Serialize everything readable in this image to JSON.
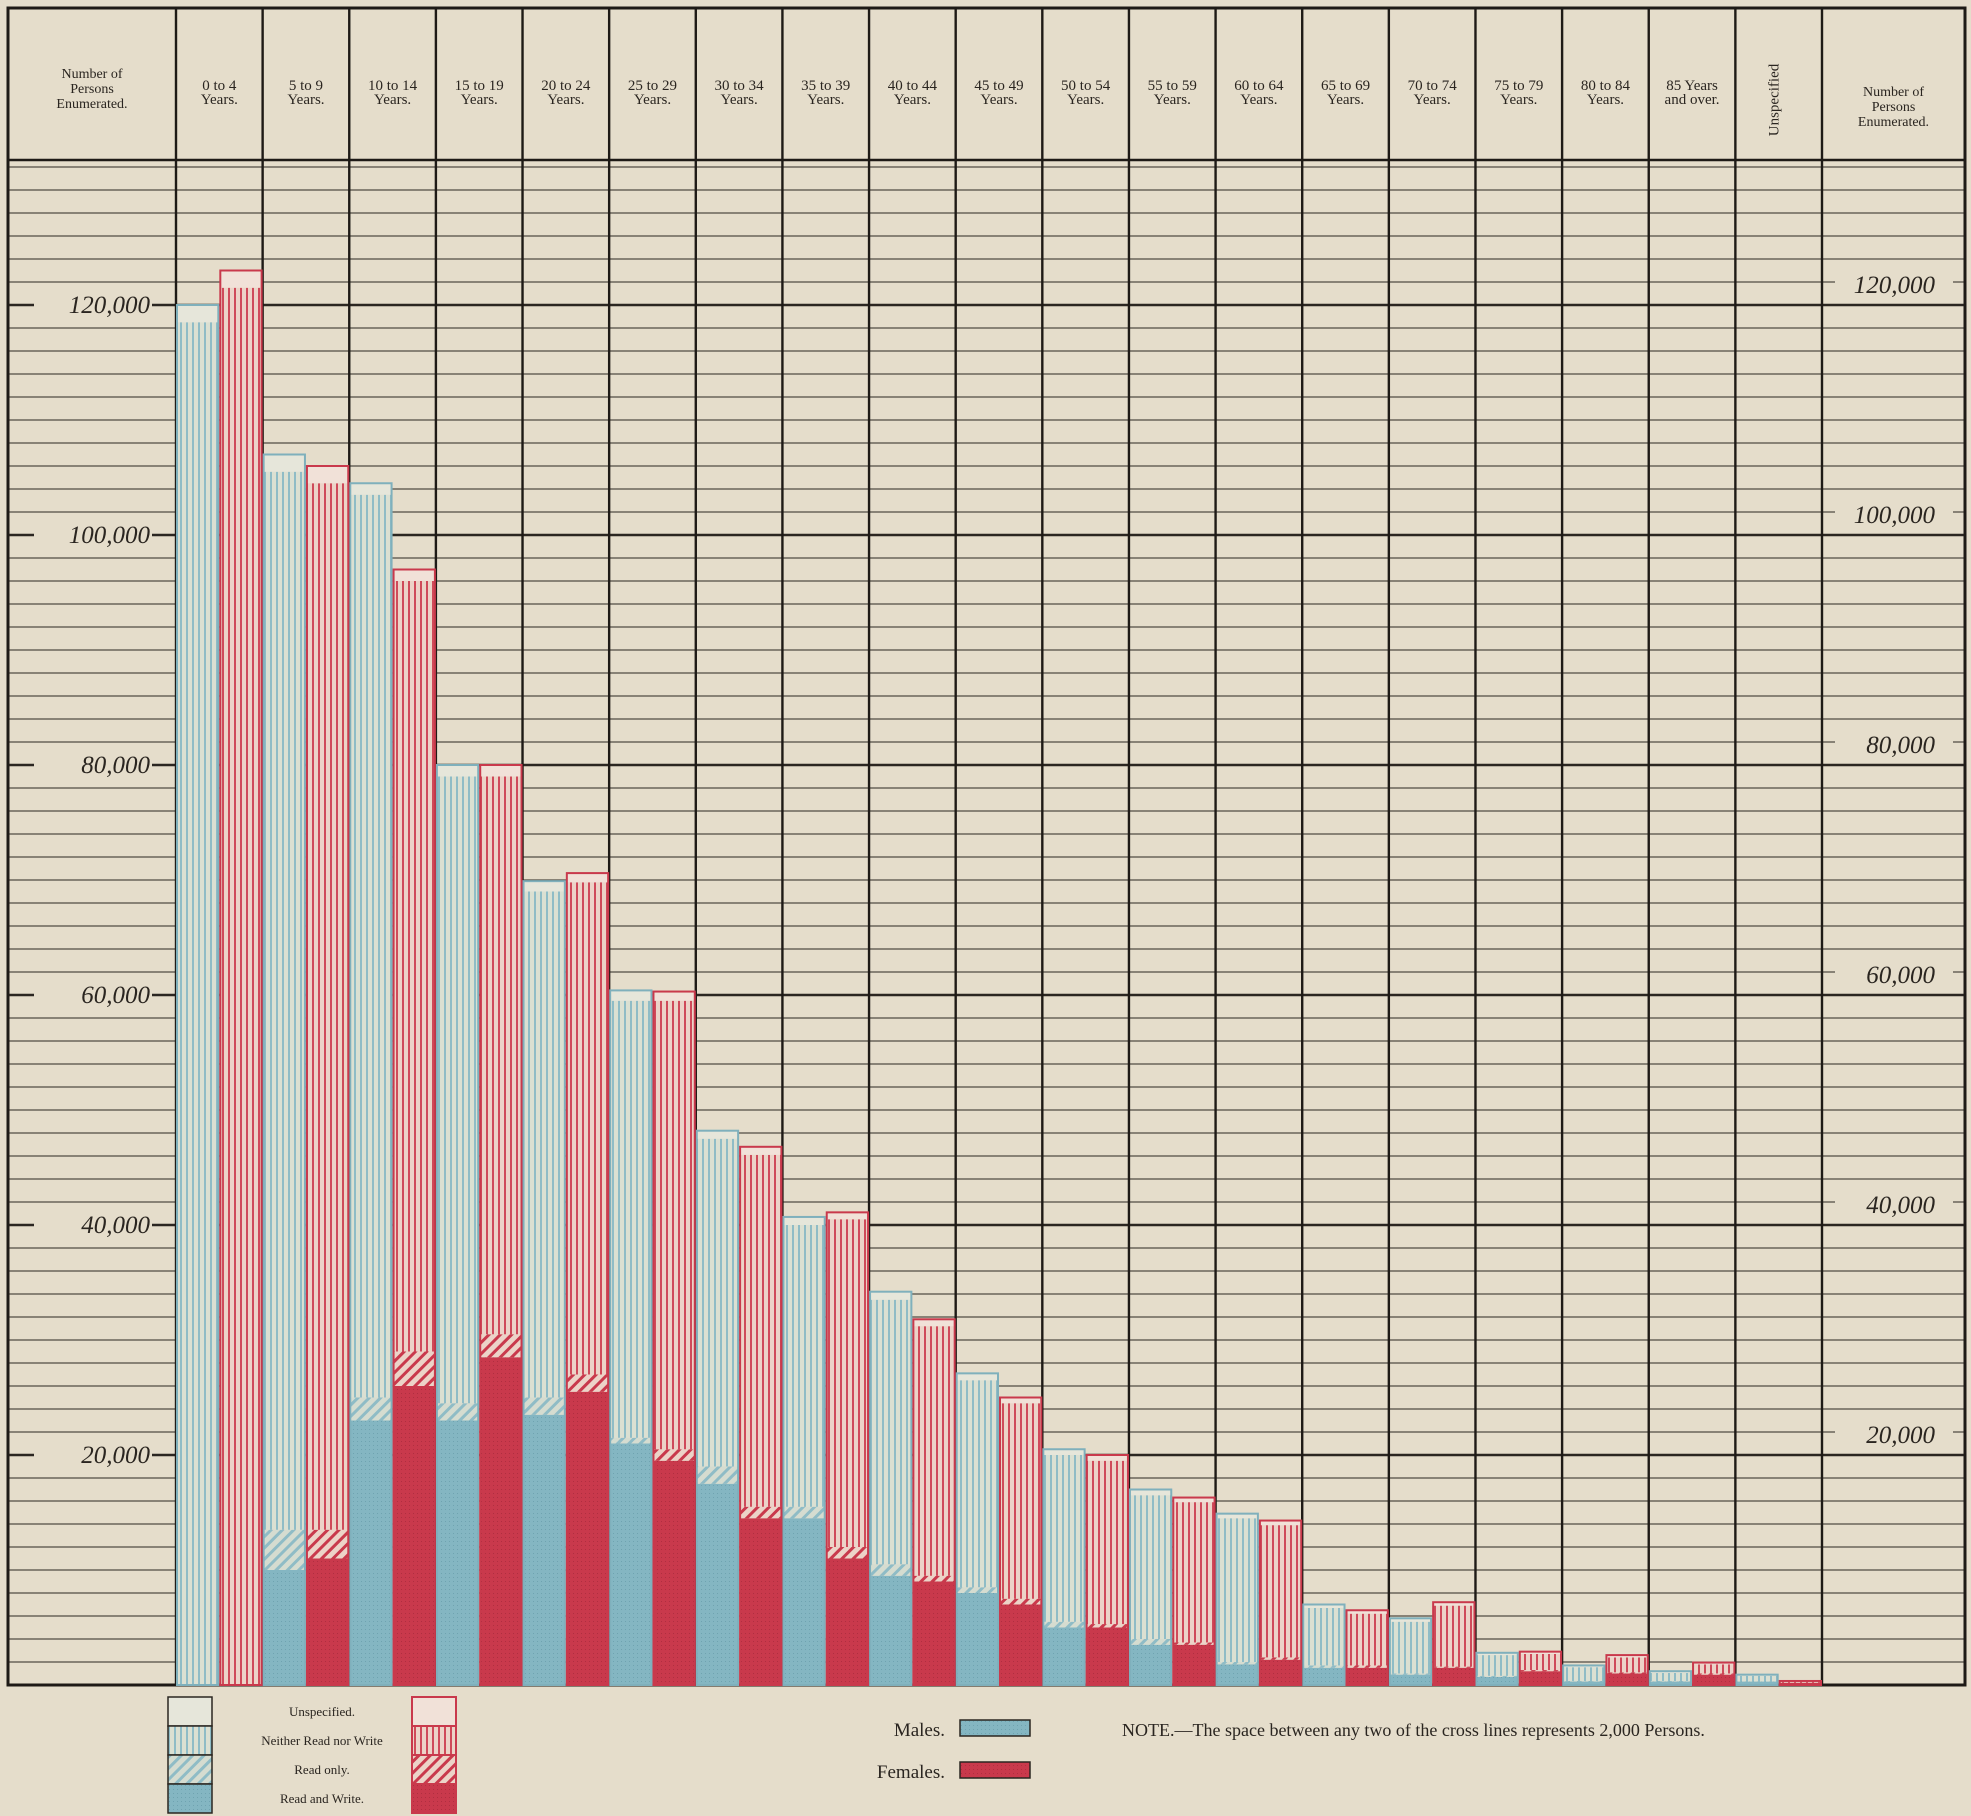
{
  "chart_data": {
    "type": "bar",
    "stacked": true,
    "grouped": true,
    "left_header": [
      "Number of",
      "Persons",
      "Enumerated."
    ],
    "right_header": [
      "Number of",
      "Persons",
      "Enumerated."
    ],
    "categories": [
      [
        "0 to 4",
        "Years."
      ],
      [
        "5 to 9",
        "Years."
      ],
      [
        "10 to 14",
        "Years."
      ],
      [
        "15 to 19",
        "Years."
      ],
      [
        "20 to 24",
        "Years."
      ],
      [
        "25 to 29",
        "Years."
      ],
      [
        "30 to 34",
        "Years."
      ],
      [
        "35 to 39",
        "Years."
      ],
      [
        "40 to 44",
        "Years."
      ],
      [
        "45 to 49",
        "Years."
      ],
      [
        "50 to 54",
        "Years."
      ],
      [
        "55 to 59",
        "Years."
      ],
      [
        "60 to 64",
        "Years."
      ],
      [
        "65 to 69",
        "Years."
      ],
      [
        "70 to 74",
        "Years."
      ],
      [
        "75 to 79",
        "Years."
      ],
      [
        "80 to 84",
        "Years."
      ],
      [
        "85 Years",
        "and over."
      ],
      [
        "Unspecified"
      ]
    ],
    "y_ticks": [
      {
        "value": 20000,
        "label": "20,000"
      },
      {
        "value": 40000,
        "label": "40,000"
      },
      {
        "value": 60000,
        "label": "60,000"
      },
      {
        "value": 80000,
        "label": "80,000"
      },
      {
        "value": 100000,
        "label": "100,000"
      },
      {
        "value": 120000,
        "label": "120,000"
      }
    ],
    "ylim": [
      0,
      140000
    ],
    "grid": true,
    "components": [
      {
        "key": "read_write",
        "name": "Read and Write."
      },
      {
        "key": "read_only",
        "name": "Read only."
      },
      {
        "key": "neither",
        "name": "Neither Read nor Write"
      },
      {
        "key": "unspecified",
        "name": "Unspecified."
      }
    ],
    "series": [
      {
        "name": "Males.",
        "color": "#86b8c4",
        "values": [
          {
            "read_write": 0,
            "read_only": 0,
            "neither": 118500,
            "unspecified": 1500
          },
          {
            "read_write": 10000,
            "read_only": 3500,
            "neither": 92000,
            "unspecified": 1500
          },
          {
            "read_write": 23000,
            "read_only": 2000,
            "neither": 78500,
            "unspecified": 1000
          },
          {
            "read_write": 23000,
            "read_only": 1500,
            "neither": 54500,
            "unspecified": 1000
          },
          {
            "read_write": 23500,
            "read_only": 1500,
            "neither": 44000,
            "unspecified": 900
          },
          {
            "read_write": 21000,
            "read_only": 500,
            "neither": 38000,
            "unspecified": 900
          },
          {
            "read_write": 17500,
            "read_only": 1500,
            "neither": 28500,
            "unspecified": 700
          },
          {
            "read_write": 14500,
            "read_only": 1000,
            "neither": 24500,
            "unspecified": 700
          },
          {
            "read_write": 9500,
            "read_only": 1000,
            "neither": 23000,
            "unspecified": 700
          },
          {
            "read_write": 8000,
            "read_only": 500,
            "neither": 18000,
            "unspecified": 600
          },
          {
            "read_write": 5000,
            "read_only": 500,
            "neither": 14500,
            "unspecified": 500
          },
          {
            "read_write": 3500,
            "read_only": 500,
            "neither": 12500,
            "unspecified": 500
          },
          {
            "read_write": 1800,
            "read_only": 200,
            "neither": 12500,
            "unspecified": 400
          },
          {
            "read_write": 1500,
            "read_only": 200,
            "neither": 5000,
            "unspecified": 300
          },
          {
            "read_write": 900,
            "read_only": 100,
            "neither": 4500,
            "unspecified": 300
          },
          {
            "read_write": 700,
            "read_only": 100,
            "neither": 1800,
            "unspecified": 200
          },
          {
            "read_write": 300,
            "read_only": 50,
            "neither": 1200,
            "unspecified": 150
          },
          {
            "read_write": 300,
            "read_only": 50,
            "neither": 700,
            "unspecified": 150
          },
          {
            "read_write": 300,
            "read_only": 0,
            "neither": 500,
            "unspecified": 100
          }
        ]
      },
      {
        "name": "Females.",
        "color": "#c9394c",
        "values": [
          {
            "read_write": 0,
            "read_only": 0,
            "neither": 121500,
            "unspecified": 1500
          },
          {
            "read_write": 11000,
            "read_only": 2500,
            "neither": 91000,
            "unspecified": 1500
          },
          {
            "read_write": 26000,
            "read_only": 3000,
            "neither": 67000,
            "unspecified": 1000
          },
          {
            "read_write": 28500,
            "read_only": 2000,
            "neither": 48500,
            "unspecified": 1000
          },
          {
            "read_write": 25500,
            "read_only": 1500,
            "neither": 42800,
            "unspecified": 800
          },
          {
            "read_write": 19500,
            "read_only": 1000,
            "neither": 39000,
            "unspecified": 800
          },
          {
            "read_write": 14500,
            "read_only": 1000,
            "neither": 30600,
            "unspecified": 700
          },
          {
            "read_write": 11000,
            "read_only": 1000,
            "neither": 28500,
            "unspecified": 600
          },
          {
            "read_write": 9000,
            "read_only": 500,
            "neither": 21700,
            "unspecified": 600
          },
          {
            "read_write": 7000,
            "read_only": 500,
            "neither": 17000,
            "unspecified": 500
          },
          {
            "read_write": 5000,
            "read_only": 300,
            "neither": 14200,
            "unspecified": 500
          },
          {
            "read_write": 3500,
            "read_only": 200,
            "neither": 12200,
            "unspecified": 400
          },
          {
            "read_write": 2200,
            "read_only": 200,
            "neither": 11500,
            "unspecified": 400
          },
          {
            "read_write": 1500,
            "read_only": 200,
            "neither": 4500,
            "unspecified": 300
          },
          {
            "read_write": 1500,
            "read_only": 100,
            "neither": 5300,
            "unspecified": 300
          },
          {
            "read_write": 1200,
            "read_only": 100,
            "neither": 1400,
            "unspecified": 200
          },
          {
            "read_write": 1000,
            "read_only": 100,
            "neither": 1300,
            "unspecified": 200
          },
          {
            "read_write": 900,
            "read_only": 100,
            "neither": 800,
            "unspecified": 150
          },
          {
            "read_write": 200,
            "read_only": 0,
            "neither": 100,
            "unspecified": 50
          }
        ]
      }
    ],
    "legend": {
      "placement": "bottom-left",
      "labels": [
        "Unspecified.",
        "Neither Read nor Write",
        "Read only.",
        "Read and Write."
      ],
      "sex_labels": [
        "Males.",
        "Females."
      ]
    },
    "note": "NOTE.—The space between any two of the cross lines represents 2,000 Persons."
  }
}
